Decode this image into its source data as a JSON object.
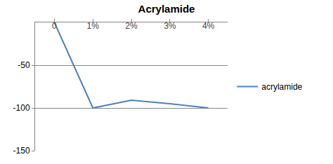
{
  "chart_data": {
    "type": "line",
    "title": "Acrylamide",
    "categories": [
      "0",
      "1%",
      "2%",
      "3%",
      "4%"
    ],
    "series": [
      {
        "name": "acrylamide",
        "color": "#4f81bd",
        "values": [
          0,
          -100,
          -91,
          -95,
          -100
        ]
      }
    ],
    "ylim": [
      -150,
      0
    ],
    "yticks": [
      -150,
      -100,
      -50,
      0
    ],
    "grid": true,
    "legend": "right"
  }
}
